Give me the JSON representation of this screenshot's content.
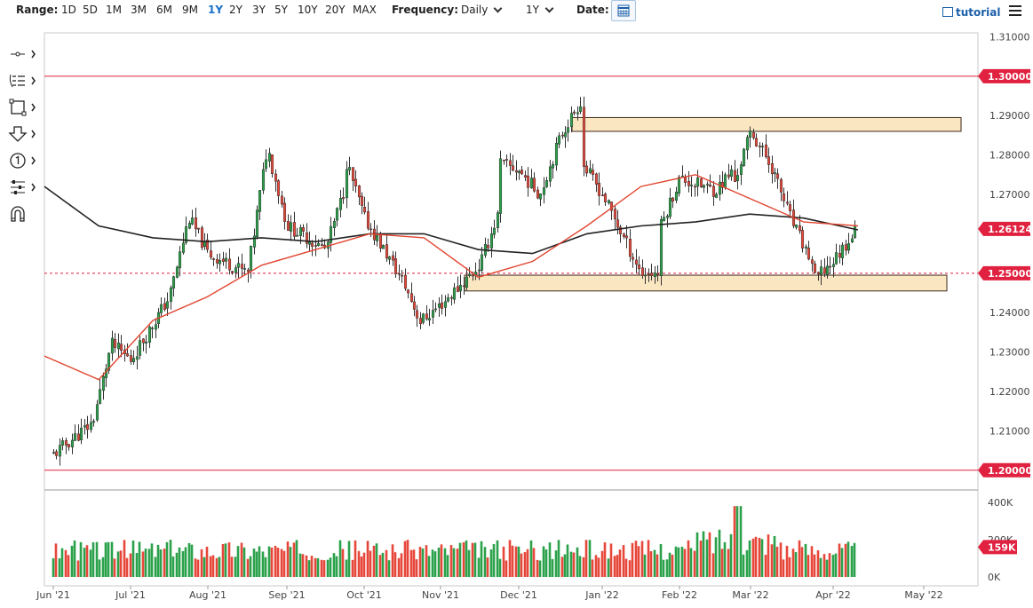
{
  "toolbar": {
    "range_label": "Range:",
    "ranges": [
      "1D",
      "5D",
      "1M",
      "3M",
      "6M",
      "9M",
      "1Y",
      "2Y",
      "3Y",
      "5Y",
      "10Y",
      "20Y",
      "MAX"
    ],
    "active_range": "1Y",
    "frequency_label": "Frequency:",
    "frequency_value": "Daily",
    "period_value": "1Y",
    "date_label": "Date:",
    "tutorial_label": "tutorial"
  },
  "tools": [
    "crosshair-icon",
    "indicators-icon",
    "rectangle-icon",
    "arrow-down-icon",
    "number-marker-icon",
    "tools-icon",
    "magnet-icon"
  ],
  "colors": {
    "up": "#2aa14a",
    "down": "#e6473a",
    "ma_fast": "#e2452f",
    "ma_slow": "#222222",
    "level": "#e0213f",
    "zone_fill": "#fbe6c2",
    "zone_stroke": "#3b2b1a"
  },
  "chart_data": {
    "type": "candlestick",
    "x_ticks": [
      "Jun '21",
      "Jul '21",
      "Aug '21",
      "Sep '21",
      "Oct '21",
      "Nov '21",
      "Dec '21",
      "Jan '22",
      "Feb '22",
      "Mar '22",
      "Apr '22",
      "May '22"
    ],
    "y_ticks": [
      "1.31000",
      "1.29000",
      "1.28000",
      "1.27000",
      "1.24000",
      "1.23000",
      "1.22000",
      "1.21000"
    ],
    "ylim": [
      1.195,
      1.311
    ],
    "last_price_label": "1.26124",
    "horizontal_levels": [
      {
        "value": 1.3,
        "label": "1.30000",
        "style": "solid"
      },
      {
        "value": 1.25,
        "label": "1.25000",
        "style": "dashed"
      },
      {
        "value": 1.2,
        "label": "1.20000",
        "style": "solid"
      }
    ],
    "zones": [
      {
        "from": "Dec '21",
        "to": "May '22",
        "low": 1.286,
        "high": 1.2895
      },
      {
        "from": "Nov '21",
        "to": "May '22",
        "low": 1.2455,
        "high": 1.2495
      }
    ],
    "close_path": [
      [
        "Jun '21",
        1.204
      ],
      [
        "Jun '21 +2w",
        1.212
      ],
      [
        "Jul '21 -1w",
        1.232
      ],
      [
        "Jul '21",
        1.228
      ],
      [
        "Jul '21 +2w",
        1.244
      ],
      [
        "Aug '21 -1w",
        1.264
      ],
      [
        "Aug '21",
        1.255
      ],
      [
        "Aug '21 +2w",
        1.25
      ],
      [
        "Aug '21 +3w",
        1.282
      ],
      [
        "Sep '21",
        1.262
      ],
      [
        "Sep '21 +2w",
        1.256
      ],
      [
        "Sep '21 +3w",
        1.272
      ],
      [
        "Oct '21 -1w",
        1.279
      ],
      [
        "Oct '21",
        1.264
      ],
      [
        "Oct '21 +2w",
        1.248
      ],
      [
        "Oct '21 +3w",
        1.237
      ],
      [
        "Nov '21 -1w",
        1.238
      ],
      [
        "Nov '21",
        1.242
      ],
      [
        "Nov '21 +2w",
        1.252
      ],
      [
        "Nov '21 +3w",
        1.266
      ],
      [
        "Dec '21 -1w",
        1.278
      ],
      [
        "Dec '21",
        1.276
      ],
      [
        "Dec '21 +1w",
        1.27
      ],
      [
        "Dec '21 +2w",
        1.285
      ],
      [
        "Dec '21 +3w",
        1.294
      ],
      [
        "Jan '22 -1w",
        1.278
      ],
      [
        "Jan '22",
        1.27
      ],
      [
        "Jan '22 +2w",
        1.25
      ],
      [
        "Jan '22 +3w",
        1.25
      ],
      [
        "Feb '22 -1w",
        1.262
      ],
      [
        "Feb '22",
        1.274
      ],
      [
        "Feb '22 +2w",
        1.271
      ],
      [
        "Feb '22 +3w",
        1.276
      ],
      [
        "Mar '22 -1w",
        1.272
      ],
      [
        "Mar '22",
        1.286
      ],
      [
        "Mar '22 +1w",
        1.277
      ],
      [
        "Mar '22 +2w",
        1.263
      ],
      [
        "Mar '22 +3w",
        1.252
      ],
      [
        "Apr '22 -1w",
        1.248
      ],
      [
        "Apr '22",
        1.253
      ],
      [
        "Apr '22 +1w",
        1.2612
      ]
    ],
    "ma_fast": [
      1.229,
      1.223,
      1.238,
      1.244,
      1.252,
      1.256,
      1.26,
      1.259,
      1.249,
      1.253,
      1.262,
      1.272,
      1.275,
      1.269,
      1.263,
      1.262
    ],
    "ma_slow": [
      1.272,
      1.262,
      1.259,
      1.258,
      1.259,
      1.258,
      1.26,
      1.26,
      1.256,
      1.255,
      1.26,
      1.262,
      1.263,
      1.265,
      1.264,
      1.261
    ],
    "volume": {
      "y_ticks": [
        "400K",
        "200K",
        "0K"
      ],
      "last_label": "159K",
      "ylim": [
        0,
        400000
      ],
      "typical": 160000,
      "peak": 380000
    }
  }
}
